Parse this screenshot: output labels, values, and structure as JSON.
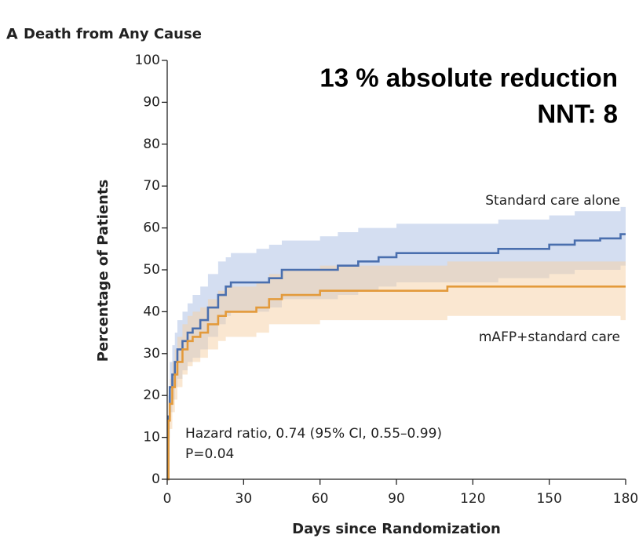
{
  "chart_data": {
    "type": "line",
    "panel_label": "A",
    "title": "Death from Any Cause",
    "annotations": [
      "13 % absolute reduction",
      "NNT: 8",
      "Hazard ratio, 0.74 (95% CI, 0.55–0.99)",
      "P=0.04"
    ],
    "x_label": "Days since Randomization",
    "y_label": "Percentage of Patients",
    "step": true,
    "xlim": [
      0,
      180
    ],
    "xticks": [
      0,
      30,
      60,
      90,
      120,
      150,
      180
    ],
    "ylim": [
      0,
      100
    ],
    "yticks": [
      0,
      10,
      20,
      30,
      40,
      50,
      60,
      70,
      80,
      90,
      100
    ],
    "x": [
      0,
      0.5,
      1,
      2,
      3,
      4,
      6,
      8,
      10,
      13,
      16,
      20,
      23,
      25,
      35,
      40,
      45,
      60,
      67,
      75,
      83,
      90,
      110,
      130,
      150,
      160,
      170,
      178,
      180
    ],
    "series": [
      {
        "name": "Standard care alone",
        "color": "#4a6fae",
        "band_color": "#a9bde3",
        "values": [
          0,
          15,
          22,
          25,
          28,
          31,
          33,
          35,
          36,
          38,
          41,
          44,
          46,
          47,
          47,
          48,
          50,
          50,
          51,
          52,
          53,
          54,
          54,
          55,
          56,
          57,
          57.5,
          58.5,
          58.5
        ],
        "upper": [
          0,
          20,
          28,
          32,
          35,
          38,
          40,
          42,
          44,
          46,
          49,
          52,
          53,
          54,
          55,
          56,
          57,
          58,
          59,
          60,
          60,
          61,
          61,
          62,
          63,
          64,
          64,
          65,
          65
        ],
        "lower": [
          0,
          10,
          16,
          19,
          22,
          24,
          26,
          28,
          29,
          31,
          34,
          37,
          39,
          40,
          40,
          41,
          43,
          43,
          44,
          45,
          46,
          47,
          47,
          48,
          49,
          50,
          50,
          51,
          51
        ]
      },
      {
        "name": "mAFP+standard care",
        "color": "#e39a3b",
        "band_color": "#f6cfa4",
        "values": [
          0,
          14,
          18,
          22,
          25,
          28,
          31,
          33,
          34,
          35,
          37,
          39,
          40,
          40,
          41,
          43,
          44,
          45,
          45,
          45,
          45,
          45,
          46,
          46,
          46,
          46,
          46,
          46,
          46
        ],
        "upper": [
          0,
          19,
          24,
          28,
          31,
          34,
          37,
          39,
          40,
          41,
          43,
          45,
          46,
          46,
          47,
          49,
          50,
          51,
          51,
          51,
          51,
          51,
          52,
          52,
          52,
          52,
          52,
          52,
          52
        ],
        "lower": [
          0,
          9,
          12,
          16,
          19,
          22,
          25,
          27,
          28,
          29,
          31,
          33,
          34,
          34,
          35,
          37,
          37,
          38,
          38,
          38,
          38,
          38,
          39,
          39,
          39,
          39,
          39,
          38,
          38
        ]
      }
    ]
  }
}
